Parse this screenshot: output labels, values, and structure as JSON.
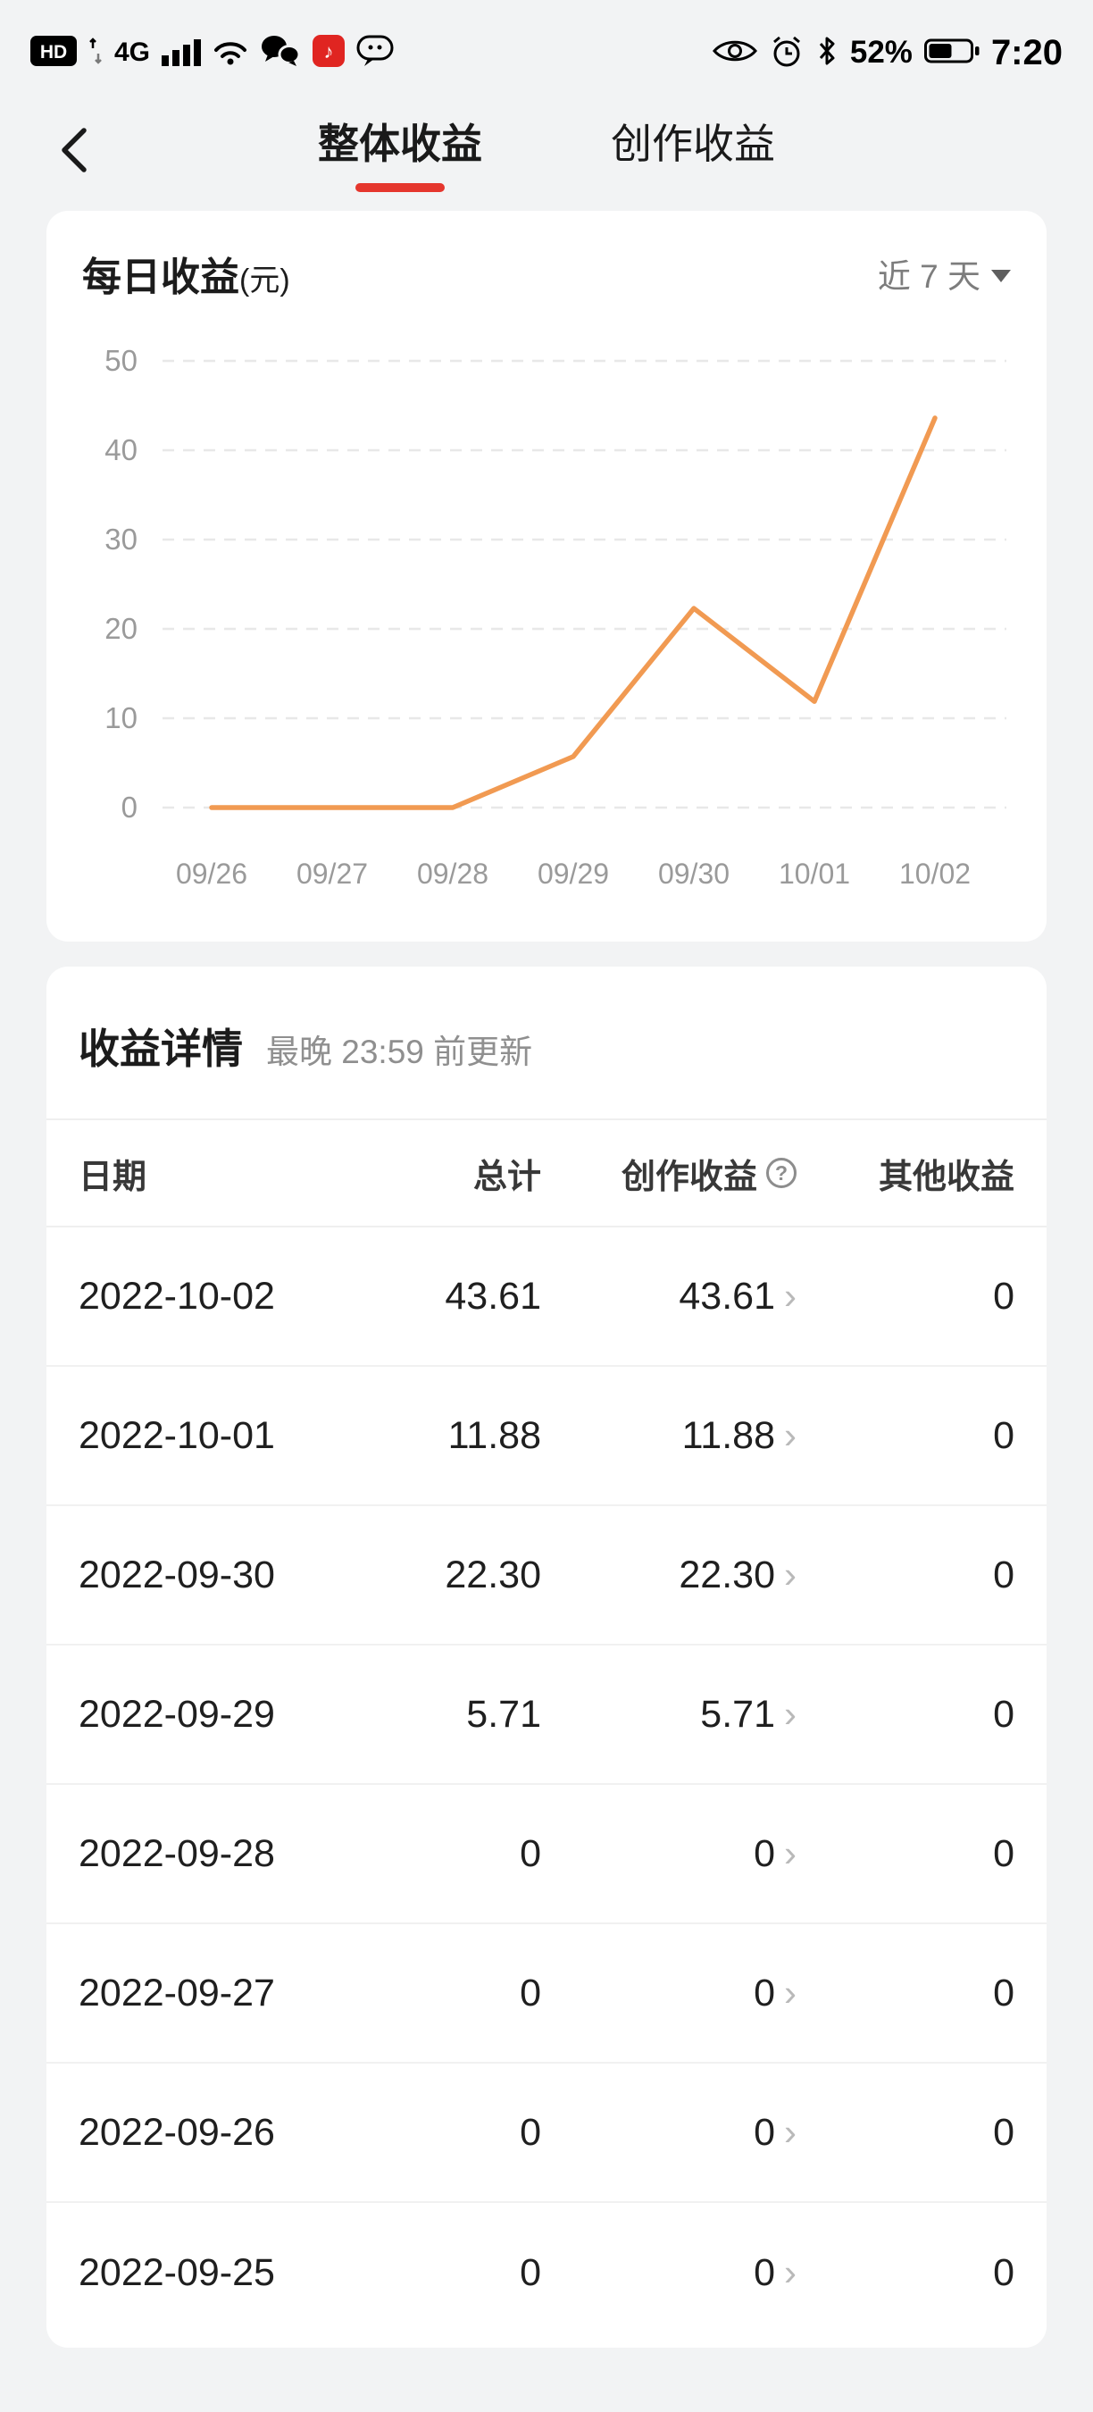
{
  "colors": {
    "accent_red": "#e5362d",
    "line_orange": "#f19a52",
    "card_bg": "#ffffff",
    "page_bg": "#f2f3f4"
  },
  "status_bar": {
    "hd": "HD",
    "network": "4G",
    "battery_percent": "52%",
    "time": "7:20",
    "left_icons": [
      "hd-badge-icon",
      "updown-arrows-icon",
      "signal-icon",
      "wifi-icon",
      "wechat-icon",
      "red-app-badge-icon",
      "chat-bubble-icon"
    ],
    "right_icons": [
      "eye-icon",
      "alarm-icon",
      "bluetooth-icon",
      "battery-icon"
    ]
  },
  "nav": {
    "tabs": [
      {
        "label": "整体收益",
        "active": true
      },
      {
        "label": "创作收益",
        "active": false
      }
    ]
  },
  "chart_card": {
    "title": "每日收益",
    "unit": "(元)",
    "range": "近 7 天"
  },
  "chart_data": {
    "type": "line",
    "title": "每日收益(元)",
    "x": [
      "09/26",
      "09/27",
      "09/28",
      "09/29",
      "09/30",
      "10/01",
      "10/02"
    ],
    "values": [
      0,
      0,
      0,
      5.71,
      22.3,
      11.88,
      43.61
    ],
    "ylim": [
      0,
      50
    ],
    "yticks": [
      0,
      10,
      20,
      30,
      40,
      50
    ],
    "line_color": "#f19a52",
    "grid": "dashed-horizontal",
    "legend": "none",
    "xlabel": "",
    "ylabel": "元"
  },
  "details": {
    "title": "收益详情",
    "subtitle": "最晚 23:59 前更新",
    "columns": {
      "date": "日期",
      "total": "总计",
      "creation": "创作收益",
      "other": "其他收益"
    },
    "rows": [
      {
        "date": "2022-10-02",
        "total": "43.61",
        "creation": "43.61",
        "other": "0"
      },
      {
        "date": "2022-10-01",
        "total": "11.88",
        "creation": "11.88",
        "other": "0"
      },
      {
        "date": "2022-09-30",
        "total": "22.30",
        "creation": "22.30",
        "other": "0"
      },
      {
        "date": "2022-09-29",
        "total": "5.71",
        "creation": "5.71",
        "other": "0"
      },
      {
        "date": "2022-09-28",
        "total": "0",
        "creation": "0",
        "other": "0"
      },
      {
        "date": "2022-09-27",
        "total": "0",
        "creation": "0",
        "other": "0"
      },
      {
        "date": "2022-09-26",
        "total": "0",
        "creation": "0",
        "other": "0"
      },
      {
        "date": "2022-09-25",
        "total": "0",
        "creation": "0",
        "other": "0"
      }
    ]
  }
}
